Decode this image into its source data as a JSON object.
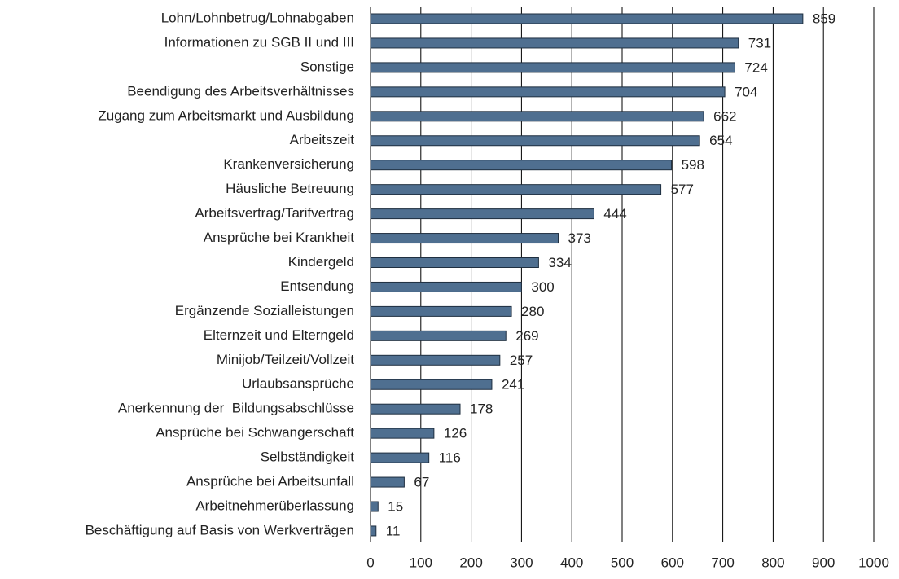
{
  "chart_data": {
    "type": "bar",
    "orientation": "horizontal",
    "categories": [
      "Lohn/Lohnbetrug/Lohnabgaben",
      "Informationen zu SGB II und III",
      "Sonstige",
      "Beendigung des Arbeitsverhältnisses",
      "Zugang zum Arbeitsmarkt und Ausbildung",
      "Arbeitszeit",
      "Krankenversicherung",
      "Häusliche Betreuung",
      "Arbeitsvertrag/Tarifvertrag",
      "Ansprüche bei Krankheit",
      "Kindergeld",
      "Entsendung",
      "Ergänzende Sozialleistungen",
      "Elternzeit und Elterngeld",
      "Minijob/Teilzeit/Vollzeit",
      "Urlaubsansprüche",
      "Anerkennung der  Bildungsabschlüsse",
      "Ansprüche bei Schwangerschaft",
      "Selbständigkeit",
      "Ansprüche bei Arbeitsunfall",
      "Arbeitnehmerüberlassung",
      "Beschäftigung auf Basis von Werkverträgen"
    ],
    "values": [
      859,
      731,
      724,
      704,
      662,
      654,
      598,
      577,
      444,
      373,
      334,
      300,
      280,
      269,
      257,
      241,
      178,
      126,
      116,
      67,
      15,
      11
    ],
    "color": "#4f6f90",
    "xlim": [
      0,
      1000
    ],
    "xticks": [
      0,
      100,
      200,
      300,
      400,
      500,
      600,
      700,
      800,
      900,
      1000
    ],
    "grid": true
  }
}
